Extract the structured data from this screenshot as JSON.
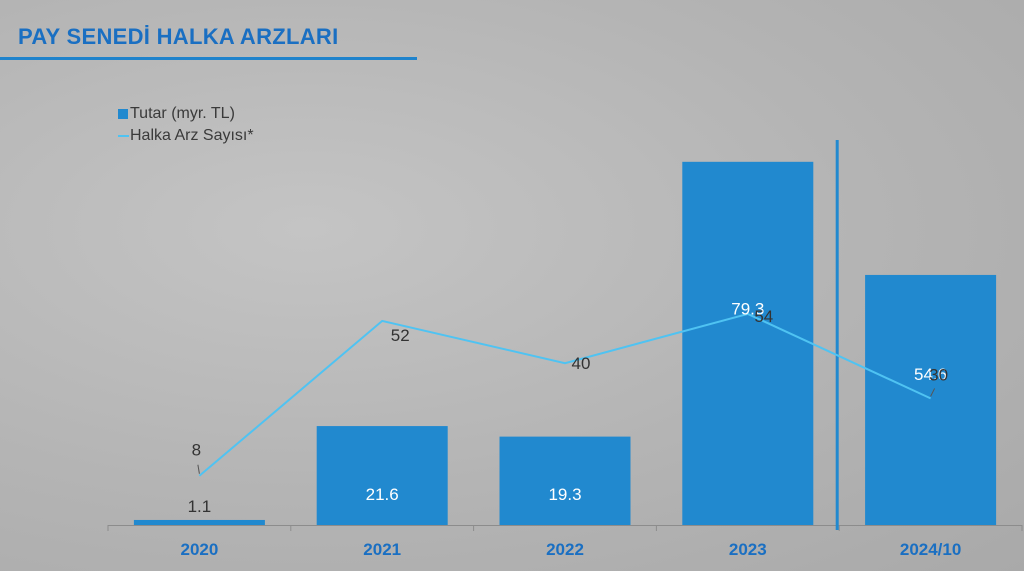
{
  "page": {
    "title": "PAY SENEDİ HALKA ARZLARI"
  },
  "colors": {
    "bar": "#2189cf",
    "line": "#4fc3f2",
    "title": "#1a6fc2",
    "axis_label": "#1a6fc2",
    "label_dark": "#333333",
    "label_light": "#ffffff"
  },
  "chart_data": {
    "type": "bar",
    "title": "",
    "categories": [
      "2020",
      "2021",
      "2022",
      "2023",
      "2024/10"
    ],
    "series": [
      {
        "name": "Tutar (myr. TL)",
        "type": "bar",
        "values": [
          1.1,
          21.6,
          19.3,
          79.3,
          54.6
        ],
        "value_labels": [
          "1.1",
          "21.6",
          "19.3",
          "79.3",
          "54.6"
        ]
      },
      {
        "name": "Halka Arz Sayısı*",
        "type": "line",
        "values": [
          8,
          52,
          40,
          54,
          30
        ],
        "value_labels": [
          "8",
          "52",
          "40",
          "54",
          "30"
        ]
      }
    ],
    "bar_ylim": [
      0,
      84.5
    ],
    "line_ylim": [
      -6,
      104
    ],
    "legend_position": "top-left",
    "grid": false,
    "separator_before_last": true
  }
}
